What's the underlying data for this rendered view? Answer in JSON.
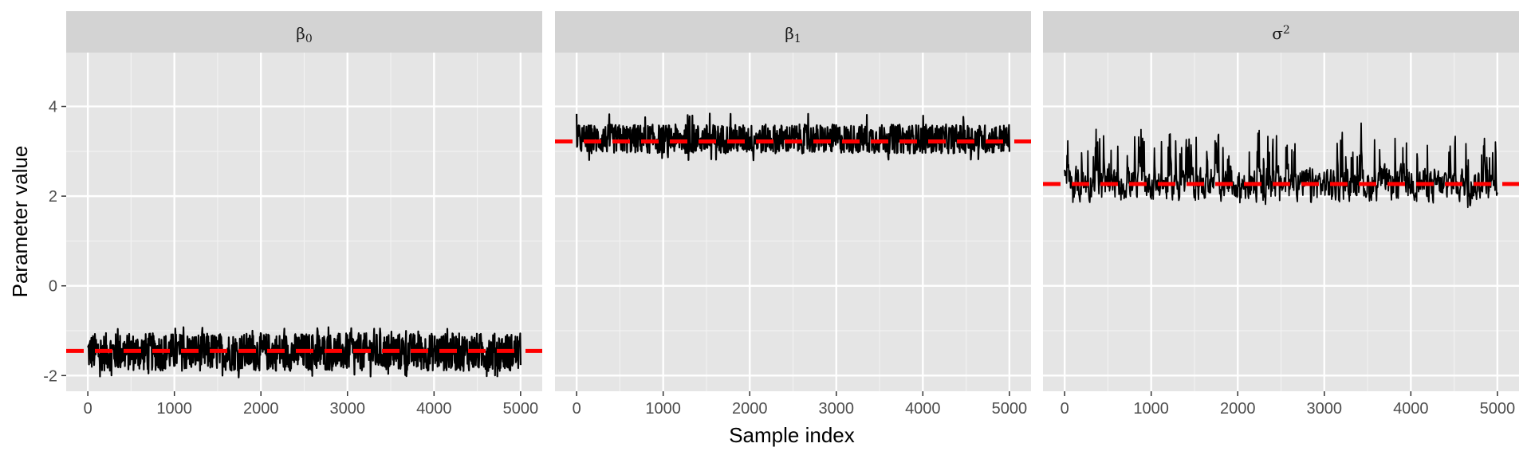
{
  "chart_data": {
    "type": "line",
    "xlabel": "Sample index",
    "ylabel": "Parameter value",
    "x_ticks": [
      0,
      1000,
      2000,
      3000,
      4000,
      5000
    ],
    "y_ticks": [
      -2,
      0,
      2,
      4
    ],
    "xlim": [
      -250,
      5250
    ],
    "ylim": [
      -2.35,
      5.2
    ],
    "grid": true,
    "reference_line_color": "#ff0000",
    "trace_color": "#000000",
    "panel_background": "#e5e5e5",
    "strip_background": "#d3d3d3",
    "panels": [
      {
        "strip_base": "β",
        "strip_sub": "0",
        "strip_sup": "",
        "true_value": -1.45,
        "trace": {
          "n_samples": 5000,
          "center": -1.45,
          "lower_band": -1.9,
          "upper_band": -1.05,
          "min": -2.05,
          "max": -0.92
        }
      },
      {
        "strip_base": "β",
        "strip_sub": "1",
        "strip_sup": "",
        "true_value": 3.22,
        "trace": {
          "n_samples": 5000,
          "center": 3.25,
          "lower_band": 2.95,
          "upper_band": 3.6,
          "min": 2.78,
          "max": 3.85
        }
      },
      {
        "strip_base": "σ",
        "strip_sub": "",
        "strip_sup": "2",
        "true_value": 2.27,
        "trace": {
          "n_samples": 5000,
          "center": 2.45,
          "lower_band": 1.75,
          "upper_band": 3.4,
          "min": 1.5,
          "max": 4.15
        }
      }
    ]
  }
}
